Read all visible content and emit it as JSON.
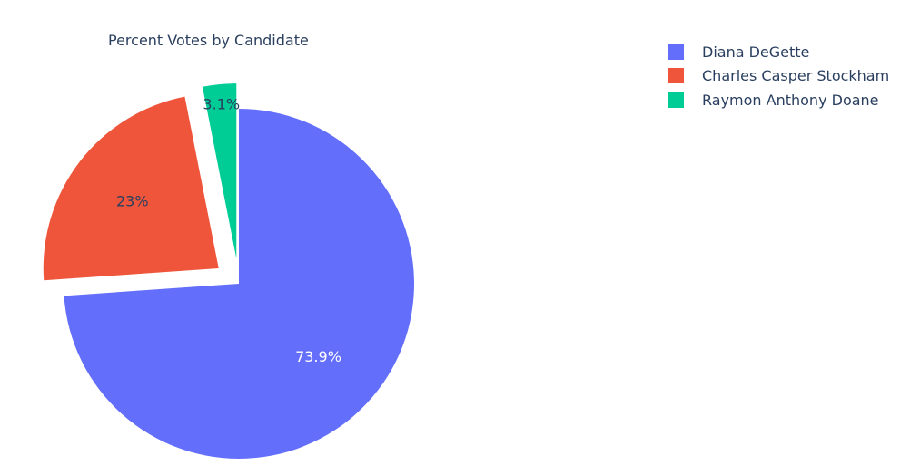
{
  "chart_data": {
    "type": "pie",
    "title": "Percent Votes by Candidate",
    "slices": [
      {
        "name": "Diana DeGette",
        "label": "73.9%",
        "value": 73.9,
        "color": "#636efa",
        "text_color": "#ffffff",
        "pulled": false
      },
      {
        "name": "Charles Casper Stockham",
        "label": "23%",
        "value": 23.0,
        "color": "#ef553b",
        "text_color": "#2a3f5f",
        "pulled": true
      },
      {
        "name": "Raymon Anthony Doane",
        "label": "3.1%",
        "value": 3.1,
        "color": "#00cc96",
        "text_color": "#2a3f5f",
        "pulled": true
      }
    ],
    "legend_position": "top-right",
    "direction": "clockwise",
    "start": "12 o'clock"
  }
}
